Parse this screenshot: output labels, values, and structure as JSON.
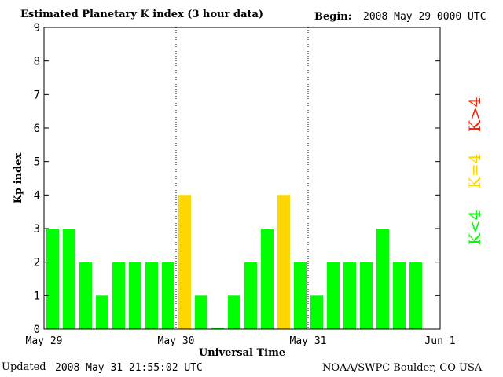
{
  "header": {
    "title": "Estimated Planetary K index (3 hour data)",
    "begin_label": "Begin:",
    "begin_value": "2008 May 29 0000 UTC"
  },
  "footer": {
    "updated_label": "Updated",
    "updated_value": "2008 May 31 21:55:02 UTC",
    "source": "NOAA/SWPC Boulder, CO USA"
  },
  "legend": {
    "low": "K<4",
    "mid": "K=4",
    "high": "K>4"
  },
  "colors": {
    "low": "#00ff00",
    "mid": "#ffd700",
    "high": "#ff2000"
  },
  "chart_data": {
    "type": "bar",
    "title": "Estimated Planetary K index (3 hour data)",
    "xlabel": "Universal Time",
    "ylabel": "Kp index",
    "ylim": [
      0,
      9
    ],
    "yticks": [
      0,
      1,
      2,
      3,
      4,
      5,
      6,
      7,
      8,
      9
    ],
    "x_ticks": [
      "May 29",
      "May 30",
      "May 31",
      "Jun 1"
    ],
    "interval_hours": 3,
    "values": [
      3,
      3,
      2,
      1,
      2,
      2,
      2,
      2,
      4,
      1,
      0.05,
      1,
      2,
      3,
      4,
      2,
      1,
      2,
      2,
      2,
      3,
      2,
      2
    ],
    "day_separators": [
      "May 30",
      "May 31"
    ],
    "grid": false
  }
}
